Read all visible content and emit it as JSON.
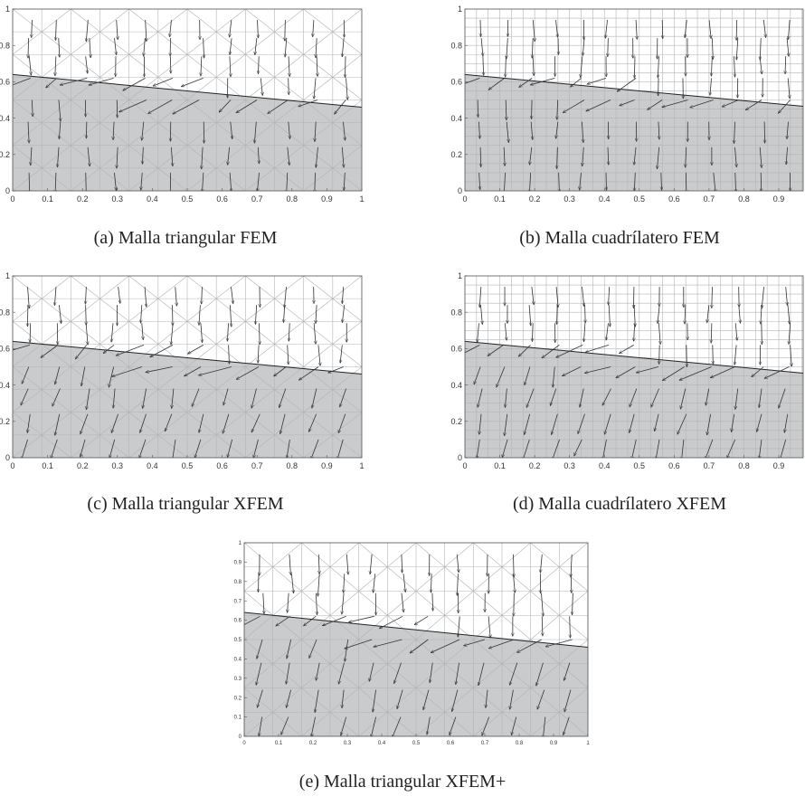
{
  "figure": {
    "captions": [
      "(a) Malla triangular FEM",
      "(b) Malla cuadrílatero FEM",
      "(c) Malla triangular XFEM",
      "(d) Malla cuadrílatero XFEM",
      "(e) Malla triangular XFEM+"
    ],
    "colors": {
      "fluid_fill": "#c9cbcd",
      "grid_line": "#b4b4b4",
      "arrow": "#333333",
      "interface": "#222222",
      "frame": "#555555"
    }
  },
  "chart_data": [
    {
      "type": "scatter",
      "caption": "(a) Malla triangular FEM",
      "mesh": "triangular",
      "method": "FEM",
      "xlim": [
        0,
        1
      ],
      "ylim": [
        0,
        1
      ],
      "xticks": [
        "0",
        "0.1",
        "0.2",
        "0.3",
        "0.4",
        "0.5",
        "0.6",
        "0.7",
        "0.8",
        "0.9",
        "1"
      ],
      "yticks": [
        "0",
        "0.2",
        "0.4",
        "0.6",
        "0.8",
        "1"
      ],
      "interface": {
        "x": [
          0,
          1
        ],
        "y": [
          0.64,
          0.46
        ]
      },
      "grid": true
    },
    {
      "type": "scatter",
      "caption": "(b) Malla cuadrílatero FEM",
      "mesh": "quadrilateral",
      "method": "FEM",
      "xlim": [
        0,
        0.97
      ],
      "ylim": [
        0,
        1
      ],
      "xticks": [
        "0",
        "0.1",
        "0.2",
        "0.3",
        "0.4",
        "0.5",
        "0.6",
        "0.7",
        "0.8",
        "0.9"
      ],
      "yticks": [
        "0",
        "0.2",
        "0.4",
        "0.6",
        "0.8",
        "1"
      ],
      "interface": {
        "x": [
          0,
          1
        ],
        "y": [
          0.64,
          0.46
        ]
      },
      "grid": true
    },
    {
      "type": "scatter",
      "caption": "(c) Malla triangular XFEM",
      "mesh": "triangular",
      "method": "XFEM",
      "xlim": [
        0,
        1
      ],
      "ylim": [
        0,
        1
      ],
      "xticks": [
        "0",
        "0.1",
        "0.2",
        "0.3",
        "0.4",
        "0.5",
        "0.6",
        "0.7",
        "0.8",
        "0.9",
        "1"
      ],
      "yticks": [
        "0",
        "0.2",
        "0.4",
        "0.6",
        "0.8",
        "1"
      ],
      "interface": {
        "x": [
          0,
          1
        ],
        "y": [
          0.64,
          0.46
        ]
      },
      "grid": true
    },
    {
      "type": "scatter",
      "caption": "(d) Malla cuadrílatero XFEM",
      "mesh": "quadrilateral",
      "method": "XFEM",
      "xlim": [
        0,
        0.97
      ],
      "ylim": [
        0,
        1
      ],
      "xticks": [
        "0",
        "0.1",
        "0.2",
        "0.3",
        "0.4",
        "0.5",
        "0.6",
        "0.7",
        "0.8",
        "0.9"
      ],
      "yticks": [
        "0",
        "0.2",
        "0.4",
        "0.6",
        "0.8",
        "1"
      ],
      "interface": {
        "x": [
          0,
          1
        ],
        "y": [
          0.64,
          0.46
        ]
      },
      "grid": true
    },
    {
      "type": "scatter",
      "caption": "(e) Malla triangular XFEM+",
      "mesh": "triangular",
      "method": "XFEM+",
      "xlim": [
        0,
        1
      ],
      "ylim": [
        0,
        1
      ],
      "xticks": [
        "0",
        "0.1",
        "0.2",
        "0.3",
        "0.4",
        "0.5",
        "0.6",
        "0.7",
        "0.8",
        "0.9",
        "1"
      ],
      "yticks": [
        "0",
        "0.1",
        "0.2",
        "0.3",
        "0.4",
        "0.5",
        "0.6",
        "0.7",
        "0.8",
        "0.9",
        "1"
      ],
      "interface": {
        "x": [
          0,
          1
        ],
        "y": [
          0.64,
          0.46
        ]
      },
      "grid": true
    }
  ]
}
